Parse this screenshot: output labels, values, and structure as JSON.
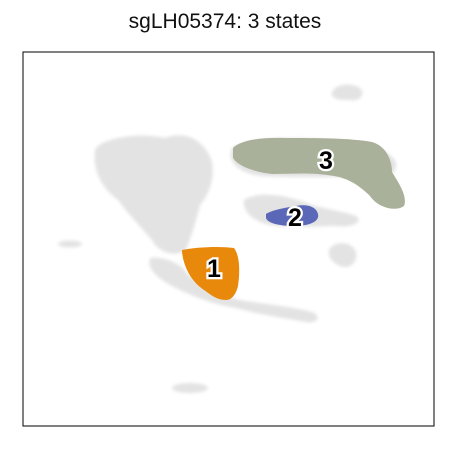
{
  "title": "sgLH05374: 3 states",
  "chart_data": {
    "type": "scatter",
    "title": "sgLH05374: 3 states",
    "xlabel": "",
    "ylabel": "",
    "grid": false,
    "legend": "none",
    "background_points_color": "#e3e3e3",
    "states": [
      {
        "label": "1",
        "color": "#e8890c"
      },
      {
        "label": "2",
        "color": "#5b67b7"
      },
      {
        "label": "3",
        "color": "#a9b19a"
      }
    ]
  }
}
